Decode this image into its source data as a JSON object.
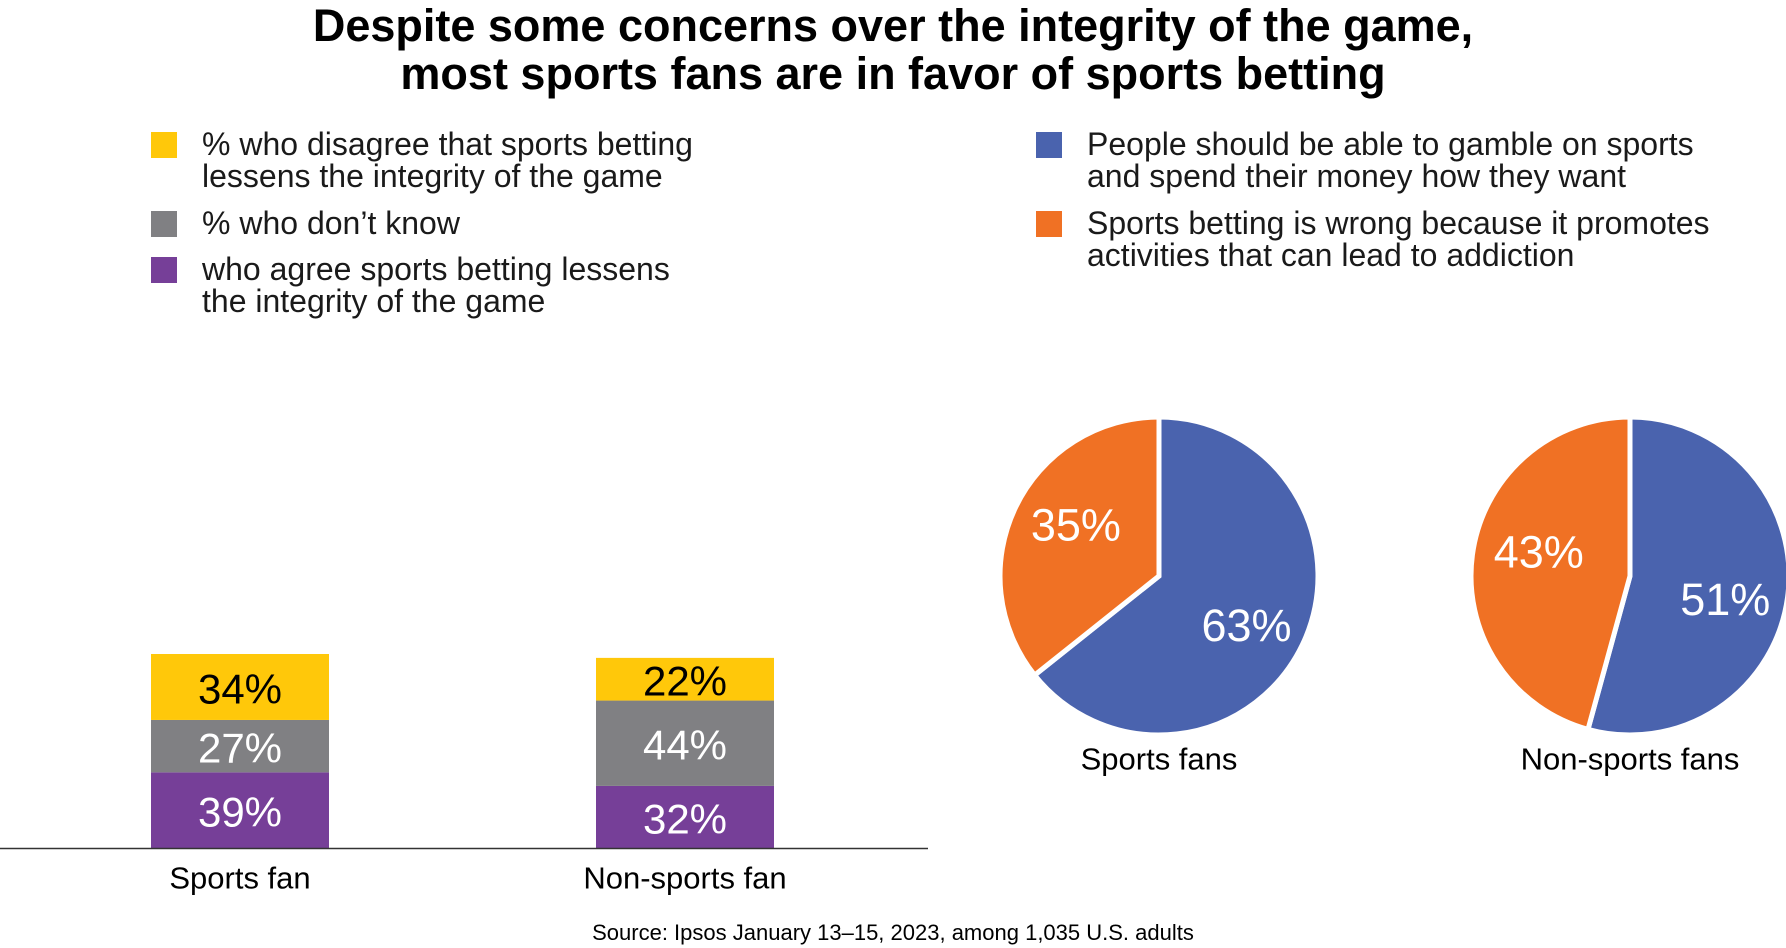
{
  "title": {
    "line1": "Despite some concerns over the integrity of the game,",
    "line2": "most sports fans are in favor of sports betting"
  },
  "bar_legend": [
    {
      "lines": [
        "% who disagree that sports betting",
        "lessens the integrity of the game"
      ],
      "color": "#FFC80A"
    },
    {
      "lines": [
        "% who don’t know"
      ],
      "color": "#808083"
    },
    {
      "lines": [
        "who agree sports betting lessens",
        "the integrity of the game"
      ],
      "color": "#763F98"
    }
  ],
  "pie_legend": [
    {
      "lines": [
        "People should be able to gamble on sports",
        "and spend their money how they want"
      ],
      "color": "#4A63AE"
    },
    {
      "lines": [
        "Sports betting is wrong because it promotes",
        "activities that can lead to addiction"
      ],
      "color": "#F07124"
    }
  ],
  "source": "Source: Ipsos January 13–15, 2023, among 1,035 U.S. adults",
  "chart_data": [
    {
      "type": "bar",
      "stacked": true,
      "categories": [
        "Sports fan",
        "Non-sports fan"
      ],
      "series": [
        {
          "key": "agree",
          "values": [
            39,
            32
          ],
          "labels": [
            "39%",
            "32%"
          ],
          "color": "#763F98",
          "text_color": "#ffffff"
        },
        {
          "key": "dont_know",
          "values": [
            27,
            44
          ],
          "labels": [
            "27%",
            "44%"
          ],
          "color": "#808083",
          "text_color": "#ffffff"
        },
        {
          "key": "disagree",
          "values": [
            34,
            22
          ],
          "labels": [
            "34%",
            "22%"
          ],
          "color": "#FFC80A",
          "text_color": "#000000"
        }
      ]
    },
    {
      "type": "pie",
      "pies": [
        {
          "label": "Sports fans",
          "slices": [
            {
              "key": "gamble",
              "value": 63,
              "label": "63%",
              "color": "#4A63AE"
            },
            {
              "key": "wrong",
              "value": 35,
              "label": "35%",
              "color": "#F07124"
            }
          ]
        },
        {
          "label": "Non-sports fans",
          "slices": [
            {
              "key": "gamble",
              "value": 51,
              "label": "51%",
              "color": "#4A63AE"
            },
            {
              "key": "wrong",
              "value": 43,
              "label": "43%",
              "color": "#F07124"
            }
          ]
        }
      ]
    }
  ]
}
